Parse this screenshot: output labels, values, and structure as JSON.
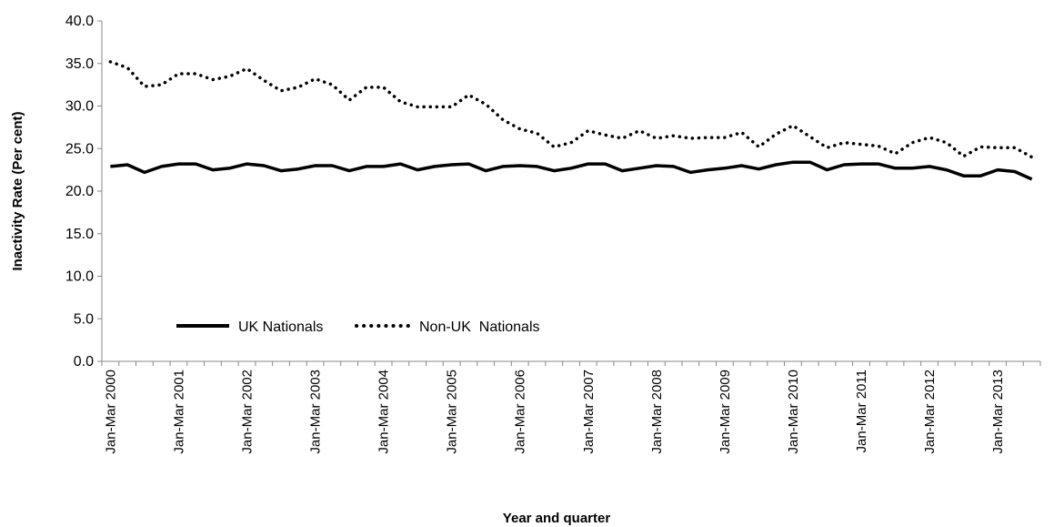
{
  "chart_data": {
    "type": "line",
    "title": "",
    "xlabel": "Year and quarter",
    "ylabel": "Inactivity Rate  (Per cent)",
    "ylim": [
      0,
      40
    ],
    "yticks": [
      "0.0",
      "5.0",
      "10.0",
      "15.0",
      "20.0",
      "25.0",
      "30.0",
      "35.0",
      "40.0"
    ],
    "x_tick_labels": [
      "Jan-Mar 2000",
      "Jan-Mar 2001",
      "Jan-Mar 2002",
      "Jan-Mar 2003",
      "Jan-Mar 2004",
      "Jan-Mar 2005",
      "Jan-Mar 2006",
      "Jan-Mar 2007",
      "Jan-Mar 2008",
      "Jan-Mar 2009",
      "Jan-Mar 2010",
      "Jan-Mar 2011",
      "Jan-Mar 2012",
      "Jan-Mar 2013"
    ],
    "grid": false,
    "legend_position": "lower-left",
    "series": [
      {
        "name": "UK Nationals",
        "style": "solid",
        "color": "#000000",
        "values": [
          22.9,
          23.1,
          22.2,
          22.9,
          23.2,
          23.2,
          22.5,
          22.7,
          23.2,
          23.0,
          22.4,
          22.6,
          23.0,
          23.0,
          22.4,
          22.9,
          22.9,
          23.2,
          22.5,
          22.9,
          23.1,
          23.2,
          22.4,
          22.9,
          23.0,
          22.9,
          22.4,
          22.7,
          23.2,
          23.2,
          22.4,
          22.7,
          23.0,
          22.9,
          22.2,
          22.5,
          22.7,
          23.0,
          22.6,
          23.1,
          23.4,
          23.4,
          22.5,
          23.1,
          23.2,
          23.2,
          22.7,
          22.7,
          22.9,
          22.5,
          21.8,
          21.8,
          22.5,
          22.3,
          21.4
        ]
      },
      {
        "name": "Non-UK  Nationals",
        "style": "dotted",
        "color": "#000000",
        "values": [
          35.2,
          34.5,
          32.3,
          32.5,
          33.8,
          33.8,
          33.1,
          33.5,
          34.4,
          33.0,
          31.8,
          32.2,
          33.2,
          32.5,
          30.7,
          32.2,
          32.2,
          30.5,
          29.9,
          29.9,
          29.9,
          31.3,
          30.2,
          28.4,
          27.3,
          26.8,
          25.2,
          25.7,
          27.1,
          26.6,
          26.2,
          27.1,
          26.2,
          26.5,
          26.2,
          26.3,
          26.3,
          26.9,
          25.2,
          26.7,
          27.7,
          26.4,
          25.1,
          25.7,
          25.5,
          25.3,
          24.4,
          25.7,
          26.3,
          25.7,
          24.1,
          25.2,
          25.1,
          25.1,
          24.0
        ]
      }
    ]
  }
}
